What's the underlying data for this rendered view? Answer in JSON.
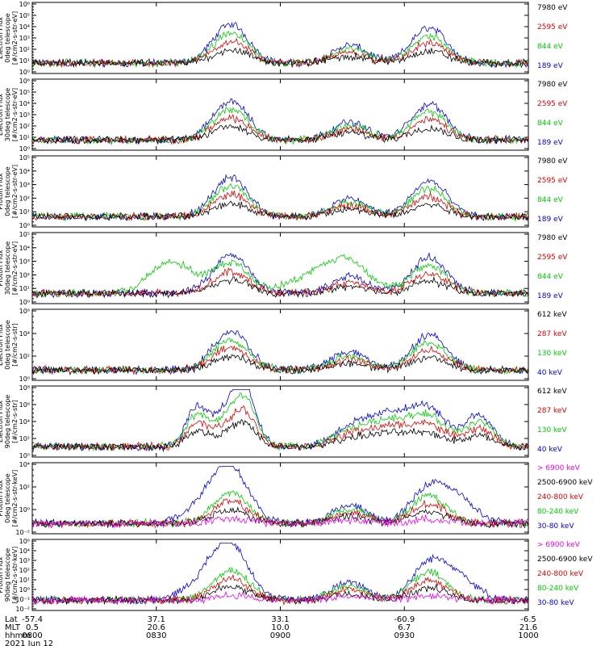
{
  "chart_data": [
    {
      "type": "line",
      "ylabel_lines": [
        "TED",
        "Electron Flux",
        "0deg telescope",
        "[#/cm2-s-str-eV]"
      ],
      "yticks": [
        "10⁶",
        "10⁵",
        "10⁴",
        "10³",
        "10²",
        "10¹",
        "10⁰"
      ],
      "ylim": [
        0,
        6
      ],
      "series": [
        {
          "name": "7980 eV",
          "color": "#000000"
        },
        {
          "name": "2595 eV",
          "color": "#dd0000"
        },
        {
          "name": "844 eV",
          "color": "#00cc00"
        },
        {
          "name": "189 eV",
          "color": "#0000dd"
        }
      ]
    },
    {
      "type": "line",
      "ylabel_lines": [
        "TED",
        "Electron Flux",
        "30deg telescope",
        "[#/cm2-s-str-eV]"
      ],
      "yticks": [
        "10⁶",
        "10⁵",
        "10⁴",
        "10³",
        "10²",
        "10¹",
        "10⁰"
      ],
      "ylim": [
        0,
        6
      ],
      "series": [
        {
          "name": "7980 eV",
          "color": "#000000"
        },
        {
          "name": "2595 eV",
          "color": "#dd0000"
        },
        {
          "name": "844 eV",
          "color": "#00cc00"
        },
        {
          "name": "189 eV",
          "color": "#0000dd"
        }
      ]
    },
    {
      "type": "line",
      "ylabel_lines": [
        "TED",
        "Proton Flux",
        "0deg telescope",
        "[#/cm2-s-str-eV]"
      ],
      "yticks": [
        "10⁵",
        "10⁴",
        "10³",
        "10²",
        "10¹",
        "10⁰"
      ],
      "ylim": [
        0,
        5
      ],
      "series": [
        {
          "name": "7980 eV",
          "color": "#000000"
        },
        {
          "name": "2595 eV",
          "color": "#dd0000"
        },
        {
          "name": "844 eV",
          "color": "#00cc00"
        },
        {
          "name": "189 eV",
          "color": "#0000dd"
        }
      ]
    },
    {
      "type": "line",
      "ylabel_lines": [
        "TED",
        "Proton Flux",
        "30deg telescope",
        "[#/cm2-s-str-eV]"
      ],
      "yticks": [
        "10⁵",
        "10⁴",
        "10³",
        "10²",
        "10¹",
        "10⁰"
      ],
      "ylim": [
        0,
        5
      ],
      "series": [
        {
          "name": "7980 eV",
          "color": "#000000"
        },
        {
          "name": "2595 eV",
          "color": "#dd0000"
        },
        {
          "name": "844 eV",
          "color": "#00cc00"
        },
        {
          "name": "189 eV",
          "color": "#0000dd"
        }
      ]
    },
    {
      "type": "line",
      "ylabel_lines": [
        "MEPED",
        "Electron Flux",
        "0deg telescope",
        "[#/cm2-s-str]"
      ],
      "yticks": [
        "10⁶",
        "10⁴",
        "10²",
        "10⁰"
      ],
      "ylim": [
        0,
        6
      ],
      "series": [
        {
          "name": "612 keV",
          "color": "#000000"
        },
        {
          "name": "287 keV",
          "color": "#dd0000"
        },
        {
          "name": "130 keV",
          "color": "#00cc00"
        },
        {
          "name": "40 keV",
          "color": "#0000dd"
        }
      ]
    },
    {
      "type": "line",
      "ylabel_lines": [
        "MEPED",
        "Electron Flux",
        "90deg telescope",
        "[#/cm2-s-str]"
      ],
      "yticks": [
        "10⁸",
        "10⁶",
        "10⁴",
        "10²",
        "10⁰"
      ],
      "ylim": [
        1,
        8
      ],
      "series": [
        {
          "name": "612 keV",
          "color": "#000000"
        },
        {
          "name": "287 keV",
          "color": "#dd0000"
        },
        {
          "name": "130 keV",
          "color": "#00cc00"
        },
        {
          "name": "40 keV",
          "color": "#0000dd"
        }
      ]
    },
    {
      "type": "line",
      "ylabel_lines": [
        "MEPED",
        "Proton Flux",
        "0deg telescope",
        "[#/cm2-s-str-keV]"
      ],
      "yticks": [
        "10⁴",
        "10²",
        "10⁰",
        "10⁻²"
      ],
      "ylim": [
        -2,
        5
      ],
      "series": [
        {
          "name": "> 6900 keV",
          "color": "#ee00ee"
        },
        {
          "name": "2500-6900 keV",
          "color": "#000000"
        },
        {
          "name": "240-800 keV",
          "color": "#dd0000"
        },
        {
          "name": "80-240 keV",
          "color": "#00cc00"
        },
        {
          "name": "30-80 keV",
          "color": "#0000dd"
        }
      ]
    },
    {
      "type": "line",
      "ylabel_lines": [
        "MEPED",
        "Proton Flux",
        "90deg telescope",
        "[#/cm2-s-str-keV]"
      ],
      "yticks": [
        "10⁶",
        "10⁴",
        "10³",
        "10²",
        "10¹",
        "10⁰",
        "10⁻¹",
        "10⁻²"
      ],
      "ylim": [
        -2,
        6
      ],
      "series": [
        {
          "name": "> 6900 keV",
          "color": "#ee00ee"
        },
        {
          "name": "2500-6900 keV",
          "color": "#000000"
        },
        {
          "name": "240-800 keV",
          "color": "#dd0000"
        },
        {
          "name": "80-240 keV",
          "color": "#00cc00"
        },
        {
          "name": "30-80 keV",
          "color": "#0000dd"
        }
      ]
    }
  ],
  "x_axis": {
    "row_labels": [
      "Lat",
      "MLT",
      "hhmm",
      "2021 Jun 12"
    ],
    "ticks": [
      {
        "lat": "-57.4",
        "mlt": "0.5",
        "hhmm": "0800"
      },
      {
        "lat": "37.1",
        "mlt": "20.6",
        "hhmm": "0830"
      },
      {
        "lat": "33.1",
        "mlt": "10.0",
        "hhmm": "0900"
      },
      {
        "lat": "-60.9",
        "mlt": "6.7",
        "hhmm": "0930"
      },
      {
        "lat": "-6.5",
        "mlt": "21.6",
        "hhmm": "1000"
      }
    ]
  }
}
